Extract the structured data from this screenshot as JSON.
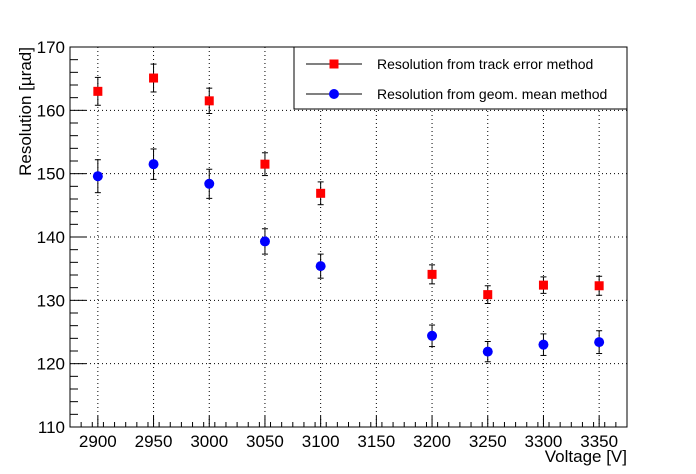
{
  "chart_data": {
    "type": "scatter",
    "title": "",
    "xlabel": "Voltage [V]",
    "ylabel": "Resolution [µrad]",
    "xlim": [
      2875,
      3375
    ],
    "ylim": [
      110,
      170
    ],
    "xticks": [
      2900,
      2950,
      3000,
      3050,
      3100,
      3150,
      3200,
      3250,
      3300,
      3350
    ],
    "yticks": [
      110,
      120,
      130,
      140,
      150,
      160,
      170
    ],
    "grid": true,
    "legend_position": "top-right",
    "series": [
      {
        "name": "Resolution from track error method",
        "marker": "square",
        "color": "#ff0000",
        "x": [
          2900,
          2950,
          3000,
          3050,
          3100,
          3200,
          3250,
          3300,
          3350
        ],
        "y": [
          163.0,
          165.1,
          161.5,
          151.5,
          146.9,
          134.1,
          130.9,
          132.4,
          132.3
        ],
        "yerr": [
          2.2,
          2.2,
          2.0,
          1.8,
          1.8,
          1.5,
          1.4,
          1.3,
          1.5
        ]
      },
      {
        "name": "Resolution from geom. mean method",
        "marker": "circle",
        "color": "#0000ff",
        "x": [
          2900,
          2950,
          3000,
          3050,
          3100,
          3200,
          3250,
          3300,
          3350
        ],
        "y": [
          149.6,
          151.5,
          148.4,
          139.3,
          135.4,
          124.4,
          121.9,
          123.0,
          123.4
        ],
        "yerr": [
          2.6,
          2.4,
          2.3,
          2.0,
          1.9,
          1.7,
          1.6,
          1.7,
          1.8
        ]
      }
    ]
  }
}
